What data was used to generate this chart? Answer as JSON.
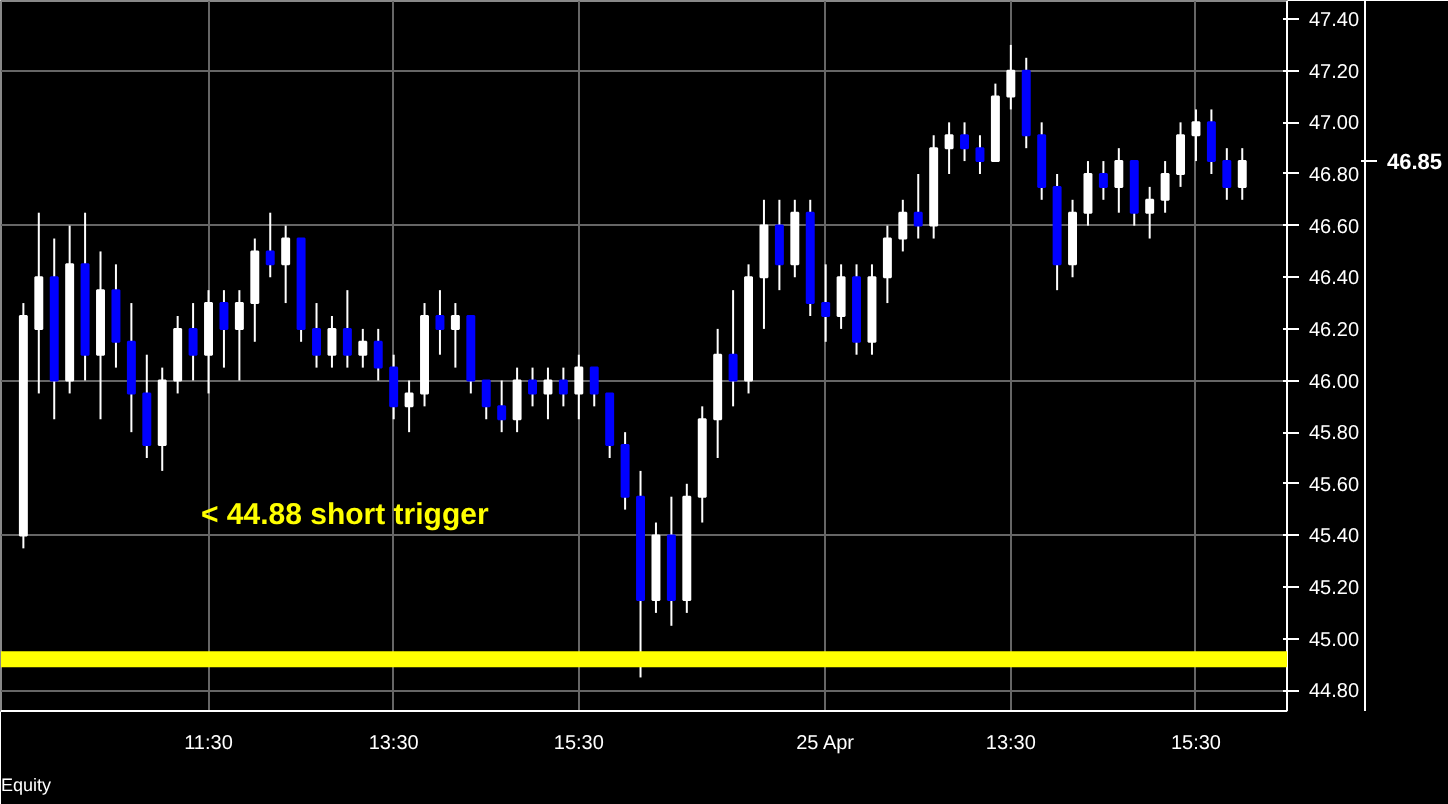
{
  "chart_data": {
    "type": "candlestick",
    "categories": [
      null,
      null,
      null,
      null,
      null,
      null,
      null,
      null,
      null,
      null,
      null,
      null,
      "11:30",
      null,
      null,
      null,
      null,
      null,
      null,
      null,
      null,
      null,
      null,
      null,
      "13:30",
      null,
      null,
      null,
      null,
      null,
      null,
      null,
      null,
      null,
      null,
      null,
      "15:30",
      null,
      null,
      null,
      null,
      null,
      null,
      null,
      null,
      null,
      null,
      null,
      null,
      null,
      null,
      null,
      "25 Apr",
      null,
      null,
      null,
      null,
      null,
      null,
      null,
      null,
      null,
      null,
      null,
      "13:30",
      null,
      null,
      null,
      null,
      null,
      null,
      null,
      null,
      null,
      null,
      null,
      "15:30",
      null,
      null,
      null
    ],
    "ohlc": [
      [
        45.4,
        46.3,
        45.35,
        46.25
      ],
      [
        46.2,
        46.65,
        45.95,
        46.4
      ],
      [
        46.4,
        46.55,
        45.85,
        46.0
      ],
      [
        46.0,
        46.6,
        45.95,
        46.45
      ],
      [
        46.45,
        46.65,
        46.0,
        46.1
      ],
      [
        46.1,
        46.5,
        45.85,
        46.35
      ],
      [
        46.35,
        46.45,
        46.05,
        46.15
      ],
      [
        46.15,
        46.3,
        45.8,
        45.95
      ],
      [
        45.95,
        46.1,
        45.7,
        45.75
      ],
      [
        45.75,
        46.05,
        45.65,
        46.0
      ],
      [
        46.0,
        46.25,
        45.95,
        46.2
      ],
      [
        46.2,
        46.3,
        46.0,
        46.1
      ],
      [
        46.1,
        46.35,
        45.95,
        46.3
      ],
      [
        46.3,
        46.35,
        46.05,
        46.2
      ],
      [
        46.2,
        46.35,
        46.0,
        46.3
      ],
      [
        46.3,
        46.55,
        46.15,
        46.5
      ],
      [
        46.5,
        46.65,
        46.4,
        46.45
      ],
      [
        46.45,
        46.6,
        46.3,
        46.55
      ],
      [
        46.55,
        46.55,
        46.15,
        46.2
      ],
      [
        46.2,
        46.3,
        46.05,
        46.1
      ],
      [
        46.1,
        46.25,
        46.05,
        46.2
      ],
      [
        46.2,
        46.35,
        46.05,
        46.1
      ],
      [
        46.1,
        46.2,
        46.05,
        46.15
      ],
      [
        46.15,
        46.2,
        46.0,
        46.05
      ],
      [
        46.05,
        46.1,
        45.85,
        45.9
      ],
      [
        45.9,
        46.0,
        45.8,
        45.95
      ],
      [
        45.95,
        46.3,
        45.9,
        46.25
      ],
      [
        46.25,
        46.35,
        46.1,
        46.2
      ],
      [
        46.2,
        46.3,
        46.05,
        46.25
      ],
      [
        46.25,
        46.25,
        45.95,
        46.0
      ],
      [
        46.0,
        46.0,
        45.85,
        45.9
      ],
      [
        45.9,
        46.0,
        45.8,
        45.85
      ],
      [
        45.85,
        46.05,
        45.8,
        46.0
      ],
      [
        46.0,
        46.05,
        45.9,
        45.95
      ],
      [
        45.95,
        46.05,
        45.85,
        46.0
      ],
      [
        46.0,
        46.05,
        45.9,
        45.95
      ],
      [
        45.95,
        46.1,
        45.85,
        46.05
      ],
      [
        46.05,
        46.05,
        45.9,
        45.95
      ],
      [
        45.95,
        45.95,
        45.7,
        45.75
      ],
      [
        45.75,
        45.8,
        45.5,
        45.55
      ],
      [
        45.55,
        45.65,
        44.85,
        45.15
      ],
      [
        45.15,
        45.45,
        45.1,
        45.4
      ],
      [
        45.4,
        45.55,
        45.05,
        45.15
      ],
      [
        45.15,
        45.6,
        45.1,
        45.55
      ],
      [
        45.55,
        45.9,
        45.45,
        45.85
      ],
      [
        45.85,
        46.2,
        45.7,
        46.1
      ],
      [
        46.1,
        46.35,
        45.9,
        46.0
      ],
      [
        46.0,
        46.45,
        45.95,
        46.4
      ],
      [
        46.4,
        46.7,
        46.2,
        46.6
      ],
      [
        46.6,
        46.7,
        46.35,
        46.45
      ],
      [
        46.45,
        46.7,
        46.4,
        46.65
      ],
      [
        46.65,
        46.7,
        46.25,
        46.3
      ],
      [
        46.3,
        46.45,
        46.15,
        46.25
      ],
      [
        46.25,
        46.45,
        46.2,
        46.4
      ],
      [
        46.4,
        46.45,
        46.1,
        46.15
      ],
      [
        46.15,
        46.45,
        46.1,
        46.4
      ],
      [
        46.4,
        46.6,
        46.3,
        46.55
      ],
      [
        46.55,
        46.7,
        46.5,
        46.65
      ],
      [
        46.65,
        46.8,
        46.55,
        46.6
      ],
      [
        46.6,
        46.95,
        46.55,
        46.9
      ],
      [
        46.9,
        47.0,
        46.8,
        46.95
      ],
      [
        46.95,
        47.0,
        46.85,
        46.9
      ],
      [
        46.9,
        46.95,
        46.8,
        46.85
      ],
      [
        46.85,
        47.15,
        46.85,
        47.1
      ],
      [
        47.1,
        47.3,
        47.05,
        47.2
      ],
      [
        47.2,
        47.25,
        46.9,
        46.95
      ],
      [
        46.95,
        47.0,
        46.7,
        46.75
      ],
      [
        46.75,
        46.8,
        46.35,
        46.45
      ],
      [
        46.45,
        46.7,
        46.4,
        46.65
      ],
      [
        46.65,
        46.85,
        46.6,
        46.8
      ],
      [
        46.8,
        46.85,
        46.7,
        46.75
      ],
      [
        46.75,
        46.9,
        46.65,
        46.85
      ],
      [
        46.85,
        46.85,
        46.6,
        46.65
      ],
      [
        46.65,
        46.75,
        46.55,
        46.7
      ],
      [
        46.7,
        46.85,
        46.65,
        46.8
      ],
      [
        46.8,
        47.0,
        46.75,
        46.95
      ],
      [
        46.95,
        47.05,
        46.85,
        47.0
      ],
      [
        47.0,
        47.05,
        46.8,
        46.85
      ],
      [
        46.85,
        46.9,
        46.7,
        46.75
      ],
      [
        46.75,
        46.9,
        46.7,
        46.85
      ]
    ],
    "colors": [
      "#ffffff",
      "#ffffff",
      "#0000ff",
      "#ffffff",
      "#0000ff",
      "#ffffff",
      "#0000ff",
      "#0000ff",
      "#0000ff",
      "#ffffff",
      "#ffffff",
      "#0000ff",
      "#ffffff",
      "#0000ff",
      "#ffffff",
      "#ffffff",
      "#0000ff",
      "#ffffff",
      "#0000ff",
      "#0000ff",
      "#ffffff",
      "#0000ff",
      "#ffffff",
      "#0000ff",
      "#0000ff",
      "#ffffff",
      "#ffffff",
      "#0000ff",
      "#ffffff",
      "#0000ff",
      "#0000ff",
      "#0000ff",
      "#ffffff",
      "#0000ff",
      "#ffffff",
      "#0000ff",
      "#ffffff",
      "#0000ff",
      "#0000ff",
      "#0000ff",
      "#0000ff",
      "#ffffff",
      "#0000ff",
      "#ffffff",
      "#ffffff",
      "#ffffff",
      "#0000ff",
      "#ffffff",
      "#ffffff",
      "#0000ff",
      "#ffffff",
      "#0000ff",
      "#0000ff",
      "#ffffff",
      "#0000ff",
      "#ffffff",
      "#ffffff",
      "#ffffff",
      "#0000ff",
      "#ffffff",
      "#ffffff",
      "#0000ff",
      "#0000ff",
      "#ffffff",
      "#ffffff",
      "#0000ff",
      "#0000ff",
      "#0000ff",
      "#ffffff",
      "#ffffff",
      "#0000ff",
      "#ffffff",
      "#0000ff",
      "#ffffff",
      "#ffffff",
      "#ffffff",
      "#ffffff",
      "#0000ff",
      "#0000ff",
      "#ffffff"
    ],
    "ylim": [
      44.72,
      47.47
    ],
    "yticks": [
      {
        "value": 44.8,
        "label": "44.80"
      },
      {
        "value": 45.0,
        "label": "45.00"
      },
      {
        "value": 45.2,
        "label": "45.20"
      },
      {
        "value": 45.4,
        "label": "45.40"
      },
      {
        "value": 45.6,
        "label": "45.60"
      },
      {
        "value": 45.8,
        "label": "45.80"
      },
      {
        "value": 46.0,
        "label": "46.00"
      },
      {
        "value": 46.2,
        "label": "46.20"
      },
      {
        "value": 46.4,
        "label": "46.40"
      },
      {
        "value": 46.6,
        "label": "46.60"
      },
      {
        "value": 46.8,
        "label": "46.80"
      },
      {
        "value": 47.0,
        "label": "47.00"
      },
      {
        "value": 47.2,
        "label": "47.20"
      },
      {
        "value": 47.4,
        "label": "47.40"
      }
    ],
    "ref_lines": [
      {
        "axis": "y",
        "value": 44.92,
        "color": "#ffff00"
      }
    ],
    "annotations": [
      "< 44.88 short trigger",
      "46.85",
      "Equity"
    ],
    "grid": true
  }
}
